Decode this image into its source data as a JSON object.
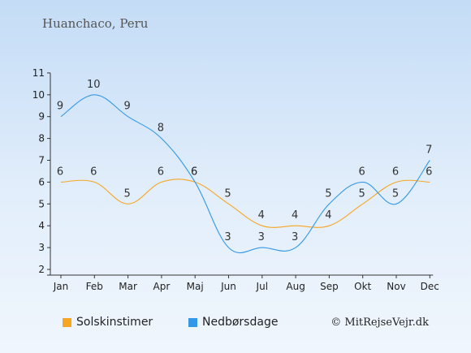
{
  "page": {
    "location_title": "Huanchaco, Peru",
    "copyright": "© MitRejseVejr.dk"
  },
  "chart_data": {
    "type": "line",
    "title": "Huanchaco, Peru",
    "categories": [
      "Jan",
      "Feb",
      "Mar",
      "Apr",
      "Maj",
      "Jun",
      "Jul",
      "Aug",
      "Sep",
      "Okt",
      "Nov",
      "Dec"
    ],
    "ylim": [
      2,
      11
    ],
    "yticks": [
      2,
      3,
      4,
      5,
      6,
      7,
      8,
      9,
      10,
      11
    ],
    "grid": false,
    "legend_position": "bottom",
    "series": [
      {
        "name": "Solskinstimer",
        "color": "#f6a623",
        "values": [
          6,
          6,
          5,
          6,
          6,
          5,
          4,
          4,
          4,
          5,
          6,
          6
        ]
      },
      {
        "name": "Nedbørsdage",
        "color": "#3399e6",
        "values": [
          9,
          10,
          9,
          8,
          6,
          3,
          3,
          3,
          5,
          6,
          5,
          7
        ]
      }
    ]
  }
}
